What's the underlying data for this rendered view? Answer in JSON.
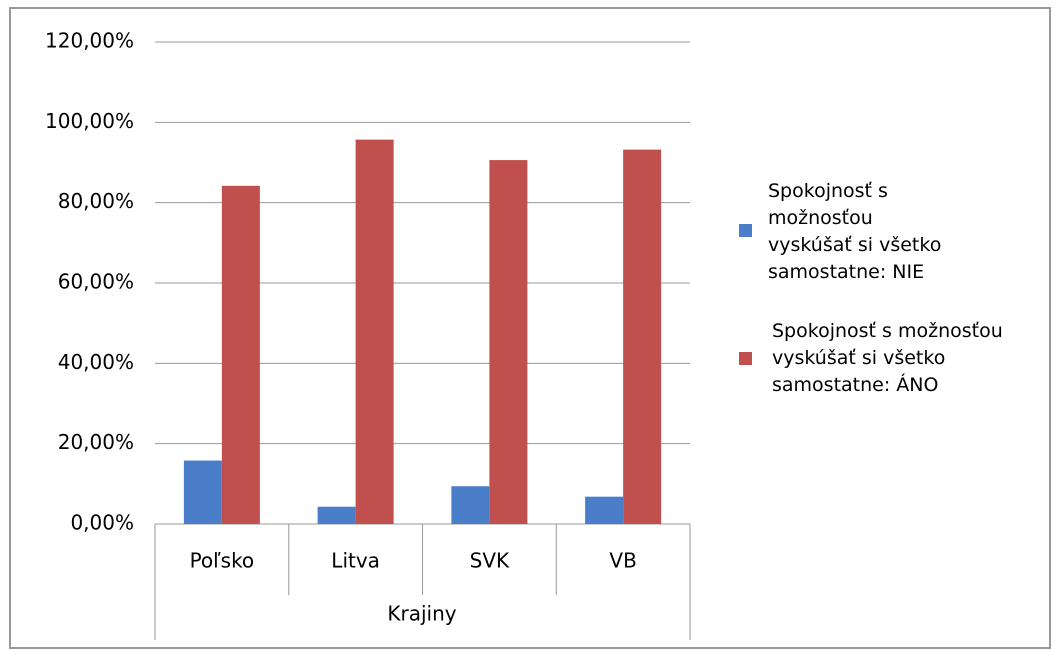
{
  "chart_data": {
    "type": "bar",
    "x_label": "Krajiny",
    "categories": [
      "Poľsko",
      "Litva",
      "SVK",
      "VB"
    ],
    "series": [
      {
        "name": "Spokojnosť s možnosťou vyskúšať si všetko samostatne: NIE",
        "color": "#4a7ec9",
        "values": [
          15.8,
          4.3,
          9.4,
          6.8
        ]
      },
      {
        "name": "Spokojnosť s možnosťou vyskúšať si všetko samostatne: ÁNO",
        "color": "#c0504d",
        "values": [
          84.2,
          95.7,
          90.6,
          93.2
        ]
      }
    ],
    "ylim": [
      0,
      120
    ],
    "yticks": [
      {
        "value": 0,
        "label": "0,00%"
      },
      {
        "value": 20,
        "label": "20,00%"
      },
      {
        "value": 40,
        "label": "40,00%"
      },
      {
        "value": 60,
        "label": "60,00%"
      },
      {
        "value": 80,
        "label": "80,00%"
      },
      {
        "value": 100,
        "label": "100,00%"
      },
      {
        "value": 120,
        "label": "120,00%"
      }
    ],
    "grid": true,
    "legend": "right"
  }
}
